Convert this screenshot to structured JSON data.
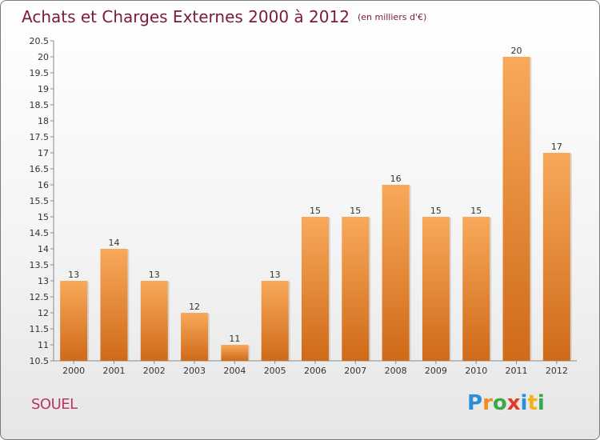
{
  "header": {
    "title": "Achats et Charges Externes 2000 à 2012",
    "unit": "(en milliers d'€)"
  },
  "place": "SOUEL",
  "logo": {
    "letters": [
      {
        "ch": "P",
        "color": "#2b8fd6"
      },
      {
        "ch": "r",
        "color": "#f28c1b"
      },
      {
        "ch": "o",
        "color": "#3aa84a"
      },
      {
        "ch": "x",
        "color": "#e23a2a"
      },
      {
        "ch": "i",
        "color": "#2b8fd6"
      },
      {
        "ch": "t",
        "color": "#f2b21b"
      },
      {
        "ch": "i",
        "color": "#3aa84a"
      }
    ]
  },
  "colors": {
    "bar_top": "#f8a95a",
    "bar_bottom": "#cf6a18",
    "title": "#7a1a3c",
    "place": "#c03366"
  },
  "chart_data": {
    "type": "bar",
    "title": "Achats et Charges Externes 2000 à 2012",
    "categories": [
      "2000",
      "2001",
      "2002",
      "2003",
      "2004",
      "2005",
      "2006",
      "2007",
      "2008",
      "2009",
      "2010",
      "2011",
      "2012"
    ],
    "values": [
      13,
      14,
      13,
      12,
      11,
      13,
      15,
      15,
      16,
      15,
      15,
      20,
      17
    ],
    "ylim": [
      10.5,
      20.5
    ],
    "yticks": [
      "10.5",
      "11",
      "11.5",
      "12",
      "12.5",
      "13",
      "13.5",
      "14",
      "14.5",
      "15",
      "15.5",
      "16",
      "16.5",
      "17",
      "17.5",
      "18",
      "18.5",
      "19",
      "19.5",
      "20",
      "20.5"
    ],
    "grid": false,
    "legend": "none"
  }
}
